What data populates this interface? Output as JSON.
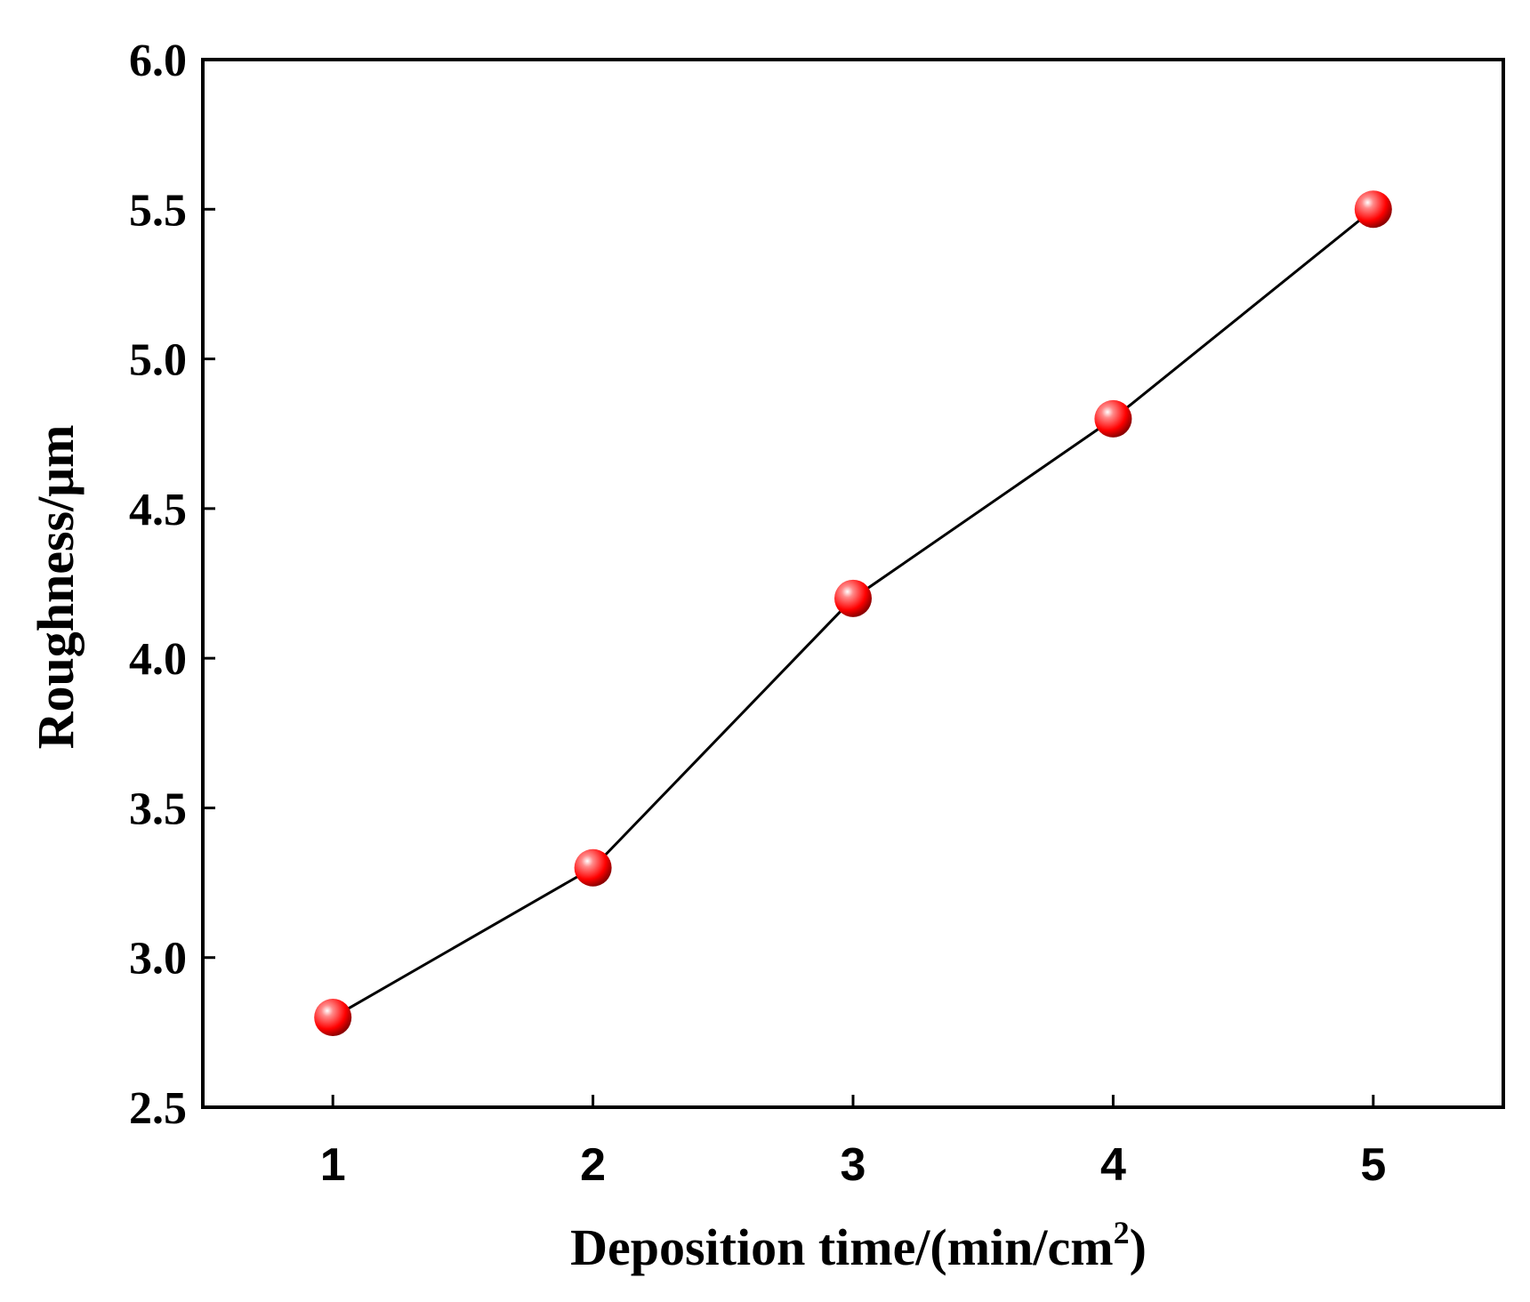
{
  "chart_data": {
    "type": "line",
    "title": "",
    "xlabel": "Deposition time/(min/cm",
    "xlabel_superscript": "2",
    "xlabel_suffix": ")",
    "ylabel": "Roughness/μm",
    "x": [
      1,
      2,
      3,
      4,
      5
    ],
    "x_tick_labels": [
      "1",
      "2",
      "3",
      "4",
      "5"
    ],
    "y_ticks": [
      2.5,
      3.0,
      3.5,
      4.0,
      4.5,
      5.0,
      5.5,
      6.0
    ],
    "y_tick_labels": [
      "2.5",
      "3.0",
      "3.5",
      "4.0",
      "4.5",
      "5.0",
      "5.5",
      "6.0"
    ],
    "xlim": [
      0.5,
      5.5
    ],
    "ylim": [
      2.5,
      6.0
    ],
    "series": [
      {
        "values": [
          2.8,
          3.3,
          4.2,
          4.8,
          5.5
        ]
      }
    ],
    "grid": false,
    "legend": "none",
    "colors": {
      "marker": "#ff0000",
      "marker_highlight": "#ffffff",
      "marker_shadow": "#8b0000",
      "line": "#000000",
      "axes": "#000000"
    }
  }
}
